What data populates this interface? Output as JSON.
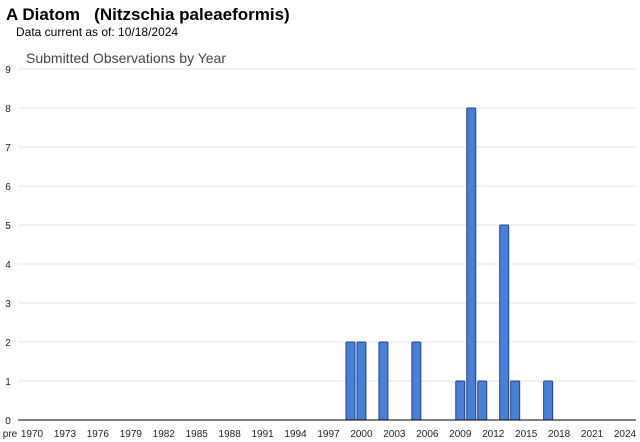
{
  "header": {
    "title": "A Diatom   (Nitzschia paleaeformis)",
    "subtitle": "Data current as of: 10/18/2024"
  },
  "colors": {
    "bar_fill": "#4a7fd6",
    "bar_stroke": "#1f3f8f",
    "grid": "#e6e6e6",
    "axis": "#000000"
  },
  "chart_data": {
    "type": "bar",
    "title": "Submitted Observations by Year",
    "xlabel": "",
    "ylabel": "",
    "ylim": [
      0,
      9
    ],
    "yticks": [
      0,
      1,
      2,
      3,
      4,
      5,
      6,
      7,
      8,
      9
    ],
    "grid": true,
    "legend": "none",
    "x_tick_labels": [
      "pre",
      "1970",
      "1973",
      "1976",
      "1979",
      "1982",
      "1985",
      "1988",
      "1991",
      "1994",
      "1997",
      "2000",
      "2003",
      "2006",
      "2009",
      "2012",
      "2015",
      "2018",
      "2021",
      "2024"
    ],
    "categories": [
      "1999",
      "2000",
      "2002",
      "2005",
      "2009",
      "2010",
      "2011",
      "2013",
      "2014",
      "2017"
    ],
    "values": [
      2,
      2,
      2,
      2,
      1,
      8,
      1,
      5,
      1,
      1
    ]
  }
}
